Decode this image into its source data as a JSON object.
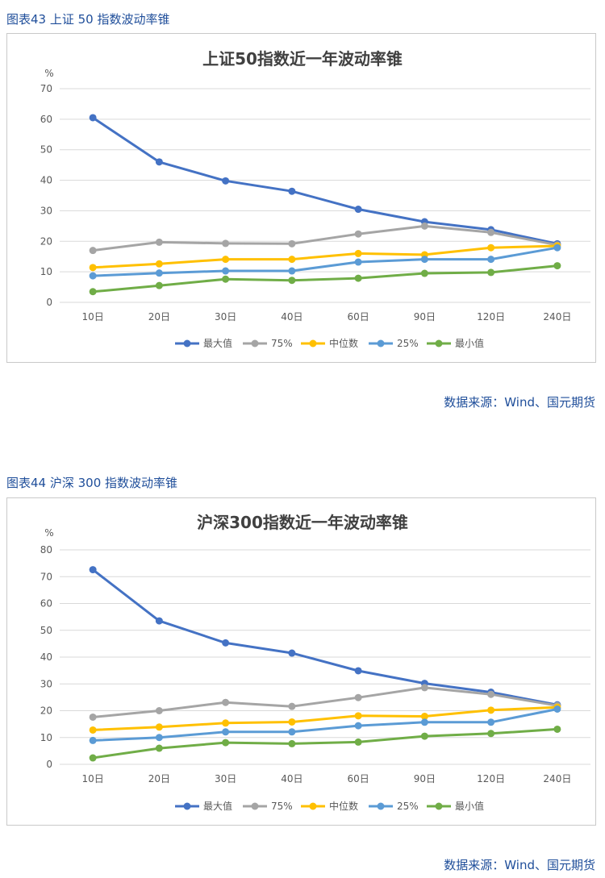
{
  "colors": {
    "caption": "#1f4e9a",
    "grid": "#d9d9d9",
    "max": "#4472c4",
    "p75": "#a5a5a5",
    "median": "#ffc000",
    "p25": "#5b9bd5",
    "min": "#70ad47"
  },
  "figures": [
    {
      "caption": "图表43 上证 50 指数波动率锥",
      "source": "数据来源：Wind、国元期货"
    },
    {
      "caption": "图表44 沪深 300 指数波动率锥",
      "source": "数据来源：Wind、国元期货"
    }
  ],
  "chart_data": [
    {
      "type": "line",
      "title": "上证50指数近一年波动率锥",
      "ylabel": "%",
      "ylim": [
        0,
        70
      ],
      "yticks": [
        0,
        10,
        20,
        30,
        40,
        50,
        60,
        70
      ],
      "categories": [
        "10日",
        "20日",
        "30日",
        "40日",
        "60日",
        "90日",
        "120日",
        "240日"
      ],
      "grid": true,
      "legend_position": "bottom",
      "series": [
        {
          "name": "最大值",
          "color": "#4472c4",
          "values": [
            60.5,
            46.0,
            39.8,
            36.4,
            30.5,
            26.4,
            23.8,
            19.2
          ]
        },
        {
          "name": "75%",
          "color": "#a5a5a5",
          "values": [
            17.0,
            19.7,
            19.3,
            19.2,
            22.4,
            25.0,
            22.9,
            18.8
          ]
        },
        {
          "name": "中位数",
          "color": "#ffc000",
          "values": [
            11.4,
            12.6,
            14.1,
            14.1,
            16.0,
            15.6,
            17.9,
            18.5
          ]
        },
        {
          "name": "25%",
          "color": "#5b9bd5",
          "values": [
            8.7,
            9.6,
            10.3,
            10.3,
            13.2,
            14.1,
            14.1,
            17.9
          ]
        },
        {
          "name": "最小值",
          "color": "#70ad47",
          "values": [
            3.5,
            5.5,
            7.6,
            7.2,
            7.9,
            9.5,
            9.8,
            12.0
          ]
        }
      ]
    },
    {
      "type": "line",
      "title": "沪深300指数近一年波动率锥",
      "ylabel": "%",
      "ylim": [
        0,
        80
      ],
      "yticks": [
        0,
        10,
        20,
        30,
        40,
        50,
        60,
        70,
        80
      ],
      "categories": [
        "10日",
        "20日",
        "30日",
        "40日",
        "60日",
        "90日",
        "120日",
        "240日"
      ],
      "grid": true,
      "legend_position": "bottom",
      "series": [
        {
          "name": "最大值",
          "color": "#4472c4",
          "values": [
            72.6,
            53.5,
            45.3,
            41.5,
            34.9,
            30.2,
            26.9,
            22.2
          ]
        },
        {
          "name": "75%",
          "color": "#a5a5a5",
          "values": [
            17.6,
            20.0,
            23.1,
            21.6,
            24.9,
            28.6,
            26.1,
            21.9
          ]
        },
        {
          "name": "中位数",
          "color": "#ffc000",
          "values": [
            12.8,
            13.9,
            15.4,
            15.8,
            18.1,
            17.9,
            20.2,
            21.3
          ]
        },
        {
          "name": "25%",
          "color": "#5b9bd5",
          "values": [
            8.9,
            10.0,
            12.1,
            12.1,
            14.4,
            15.7,
            15.7,
            20.6
          ]
        },
        {
          "name": "最小值",
          "color": "#70ad47",
          "values": [
            2.4,
            6.0,
            8.1,
            7.7,
            8.3,
            10.5,
            11.5,
            13.1
          ]
        }
      ]
    }
  ]
}
